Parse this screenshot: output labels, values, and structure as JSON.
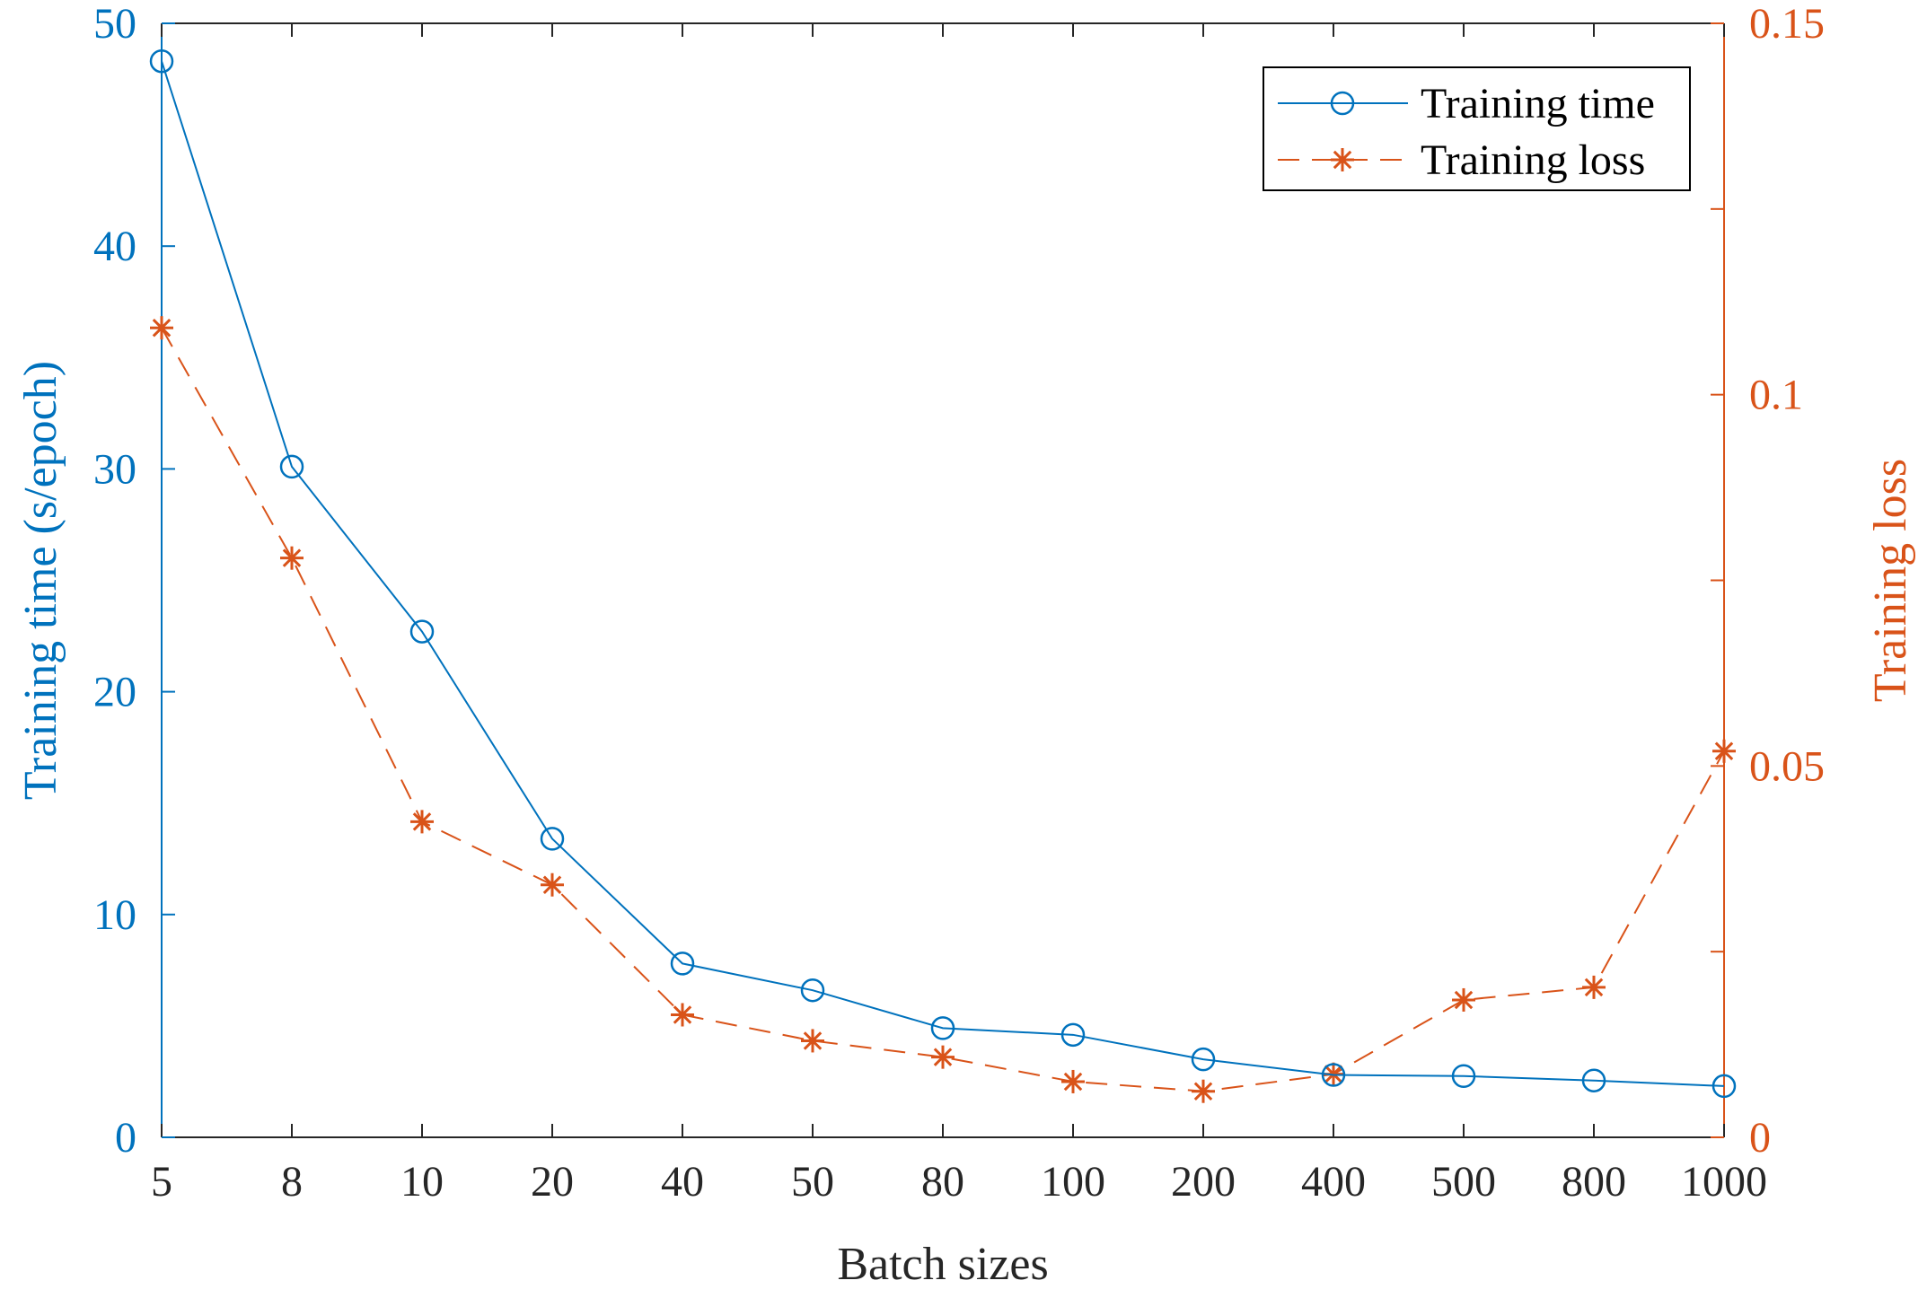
{
  "chart_data": {
    "type": "line",
    "title": "",
    "xlabel": "Batch sizes",
    "ylabel_left": "Training time (s/epoch)",
    "ylabel_right": "Training loss",
    "categories": [
      "5",
      "8",
      "10",
      "20",
      "40",
      "50",
      "80",
      "100",
      "200",
      "400",
      "500",
      "800",
      "1000"
    ],
    "ylim_left": [
      0,
      50
    ],
    "ylim_right": [
      0,
      0.15
    ],
    "yticks_left": [
      {
        "value": 0,
        "label": "0"
      },
      {
        "value": 10,
        "label": "10"
      },
      {
        "value": 20,
        "label": "20"
      },
      {
        "value": 30,
        "label": "30"
      },
      {
        "value": 40,
        "label": "40"
      },
      {
        "value": 50,
        "label": "50"
      }
    ],
    "yticks_right": [
      {
        "value": 0,
        "label": "0"
      },
      {
        "value": 0.05,
        "label": "0.05"
      },
      {
        "value": 0.1,
        "label": "0.1"
      },
      {
        "value": 0.15,
        "label": "0.15"
      }
    ],
    "grid": false,
    "legend_position": "top-right",
    "series": [
      {
        "name": "Training time",
        "axis": "left",
        "color": "#0072BD",
        "line_style": "solid",
        "marker": "circle",
        "values": [
          48.3,
          30.1,
          22.7,
          13.4,
          7.8,
          6.6,
          4.9,
          4.6,
          3.5,
          2.8,
          2.75,
          2.55,
          2.3
        ]
      },
      {
        "name": "Training loss",
        "axis": "right",
        "color": "#D95319",
        "line_style": "dashed",
        "marker": "asterisk",
        "values": [
          0.109,
          0.078,
          0.0425,
          0.034,
          0.0165,
          0.013,
          0.0108,
          0.0075,
          0.0062,
          0.0085,
          0.0185,
          0.0202,
          0.052
        ]
      }
    ],
    "colors": {
      "left_axis": "#0072BD",
      "right_axis": "#D95319",
      "frame": "#262626"
    }
  }
}
